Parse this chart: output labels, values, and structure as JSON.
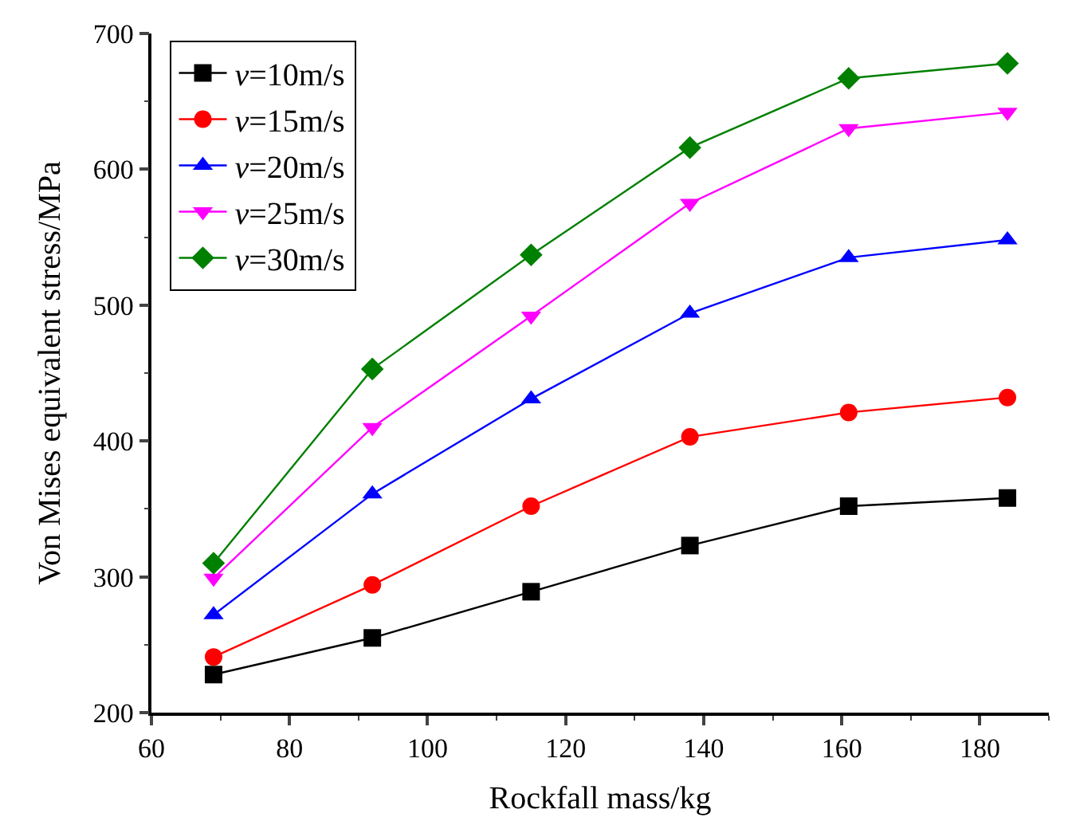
{
  "chart_data": {
    "type": "line",
    "xlabel": "Rockfall mass/kg",
    "ylabel": "Von Mises equivalent stress/MPa",
    "x": [
      69,
      92,
      115,
      138,
      161,
      184
    ],
    "series": [
      {
        "name": "v=10m/s",
        "color": "#000000",
        "marker": "square",
        "values": [
          228,
          255,
          289,
          323,
          352,
          358
        ]
      },
      {
        "name": "v=15m/s",
        "color": "#ff0000",
        "marker": "circle",
        "values": [
          241,
          294,
          352,
          403,
          421,
          432
        ]
      },
      {
        "name": "v=20m/s",
        "color": "#0000ff",
        "marker": "triangle",
        "values": [
          272,
          361,
          431,
          494,
          535,
          548
        ]
      },
      {
        "name": "v=25m/s",
        "color": "#ff00ff",
        "marker": "triangle-down",
        "values": [
          299,
          410,
          492,
          575,
          630,
          642
        ]
      },
      {
        "name": "v=30m/s",
        "color": "#008000",
        "marker": "diamond",
        "values": [
          310,
          453,
          537,
          616,
          667,
          678
        ]
      }
    ],
    "xlim": [
      60,
      190
    ],
    "xticks": [
      60,
      80,
      100,
      120,
      140,
      160,
      180
    ],
    "ylim": [
      200,
      700
    ],
    "yticks": [
      200,
      300,
      400,
      500,
      600,
      700
    ],
    "legend": "top left",
    "line_style": "solid"
  }
}
